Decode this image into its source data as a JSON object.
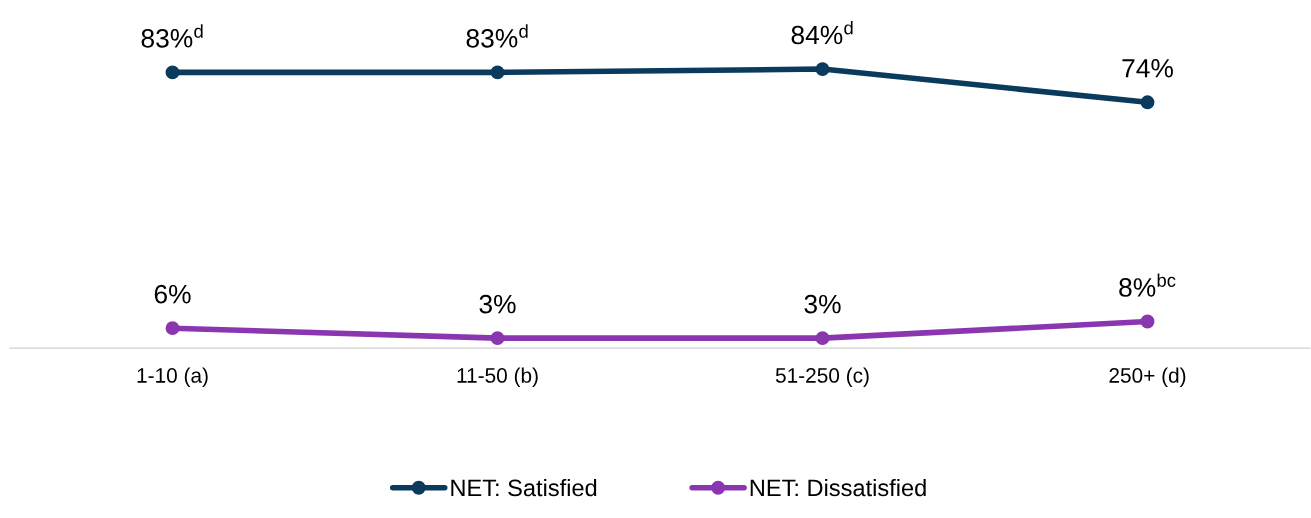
{
  "chart_data": {
    "type": "line",
    "categories": [
      "1-10 (a)",
      "11-50 (b)",
      "51-250 (c)",
      "250+ (d)"
    ],
    "series": [
      {
        "name": "NET: Satisfied",
        "color": "#0b3b5c",
        "values": [
          83,
          83,
          84,
          74
        ],
        "value_labels": [
          "83%$^{d}$",
          "83%$^{d}$",
          "84%$^{d}$",
          "74%"
        ]
      },
      {
        "name": "NET: Dissatisfied",
        "color": "#8a36b0",
        "values": [
          6,
          3,
          3,
          8
        ],
        "value_labels": [
          "6%",
          "3%",
          "3%",
          "8%$^{bc}$"
        ]
      }
    ],
    "tick_labels": "x",
    "grid": false,
    "legend": "bottom",
    "marker": "circle",
    "line_style": "solid"
  }
}
